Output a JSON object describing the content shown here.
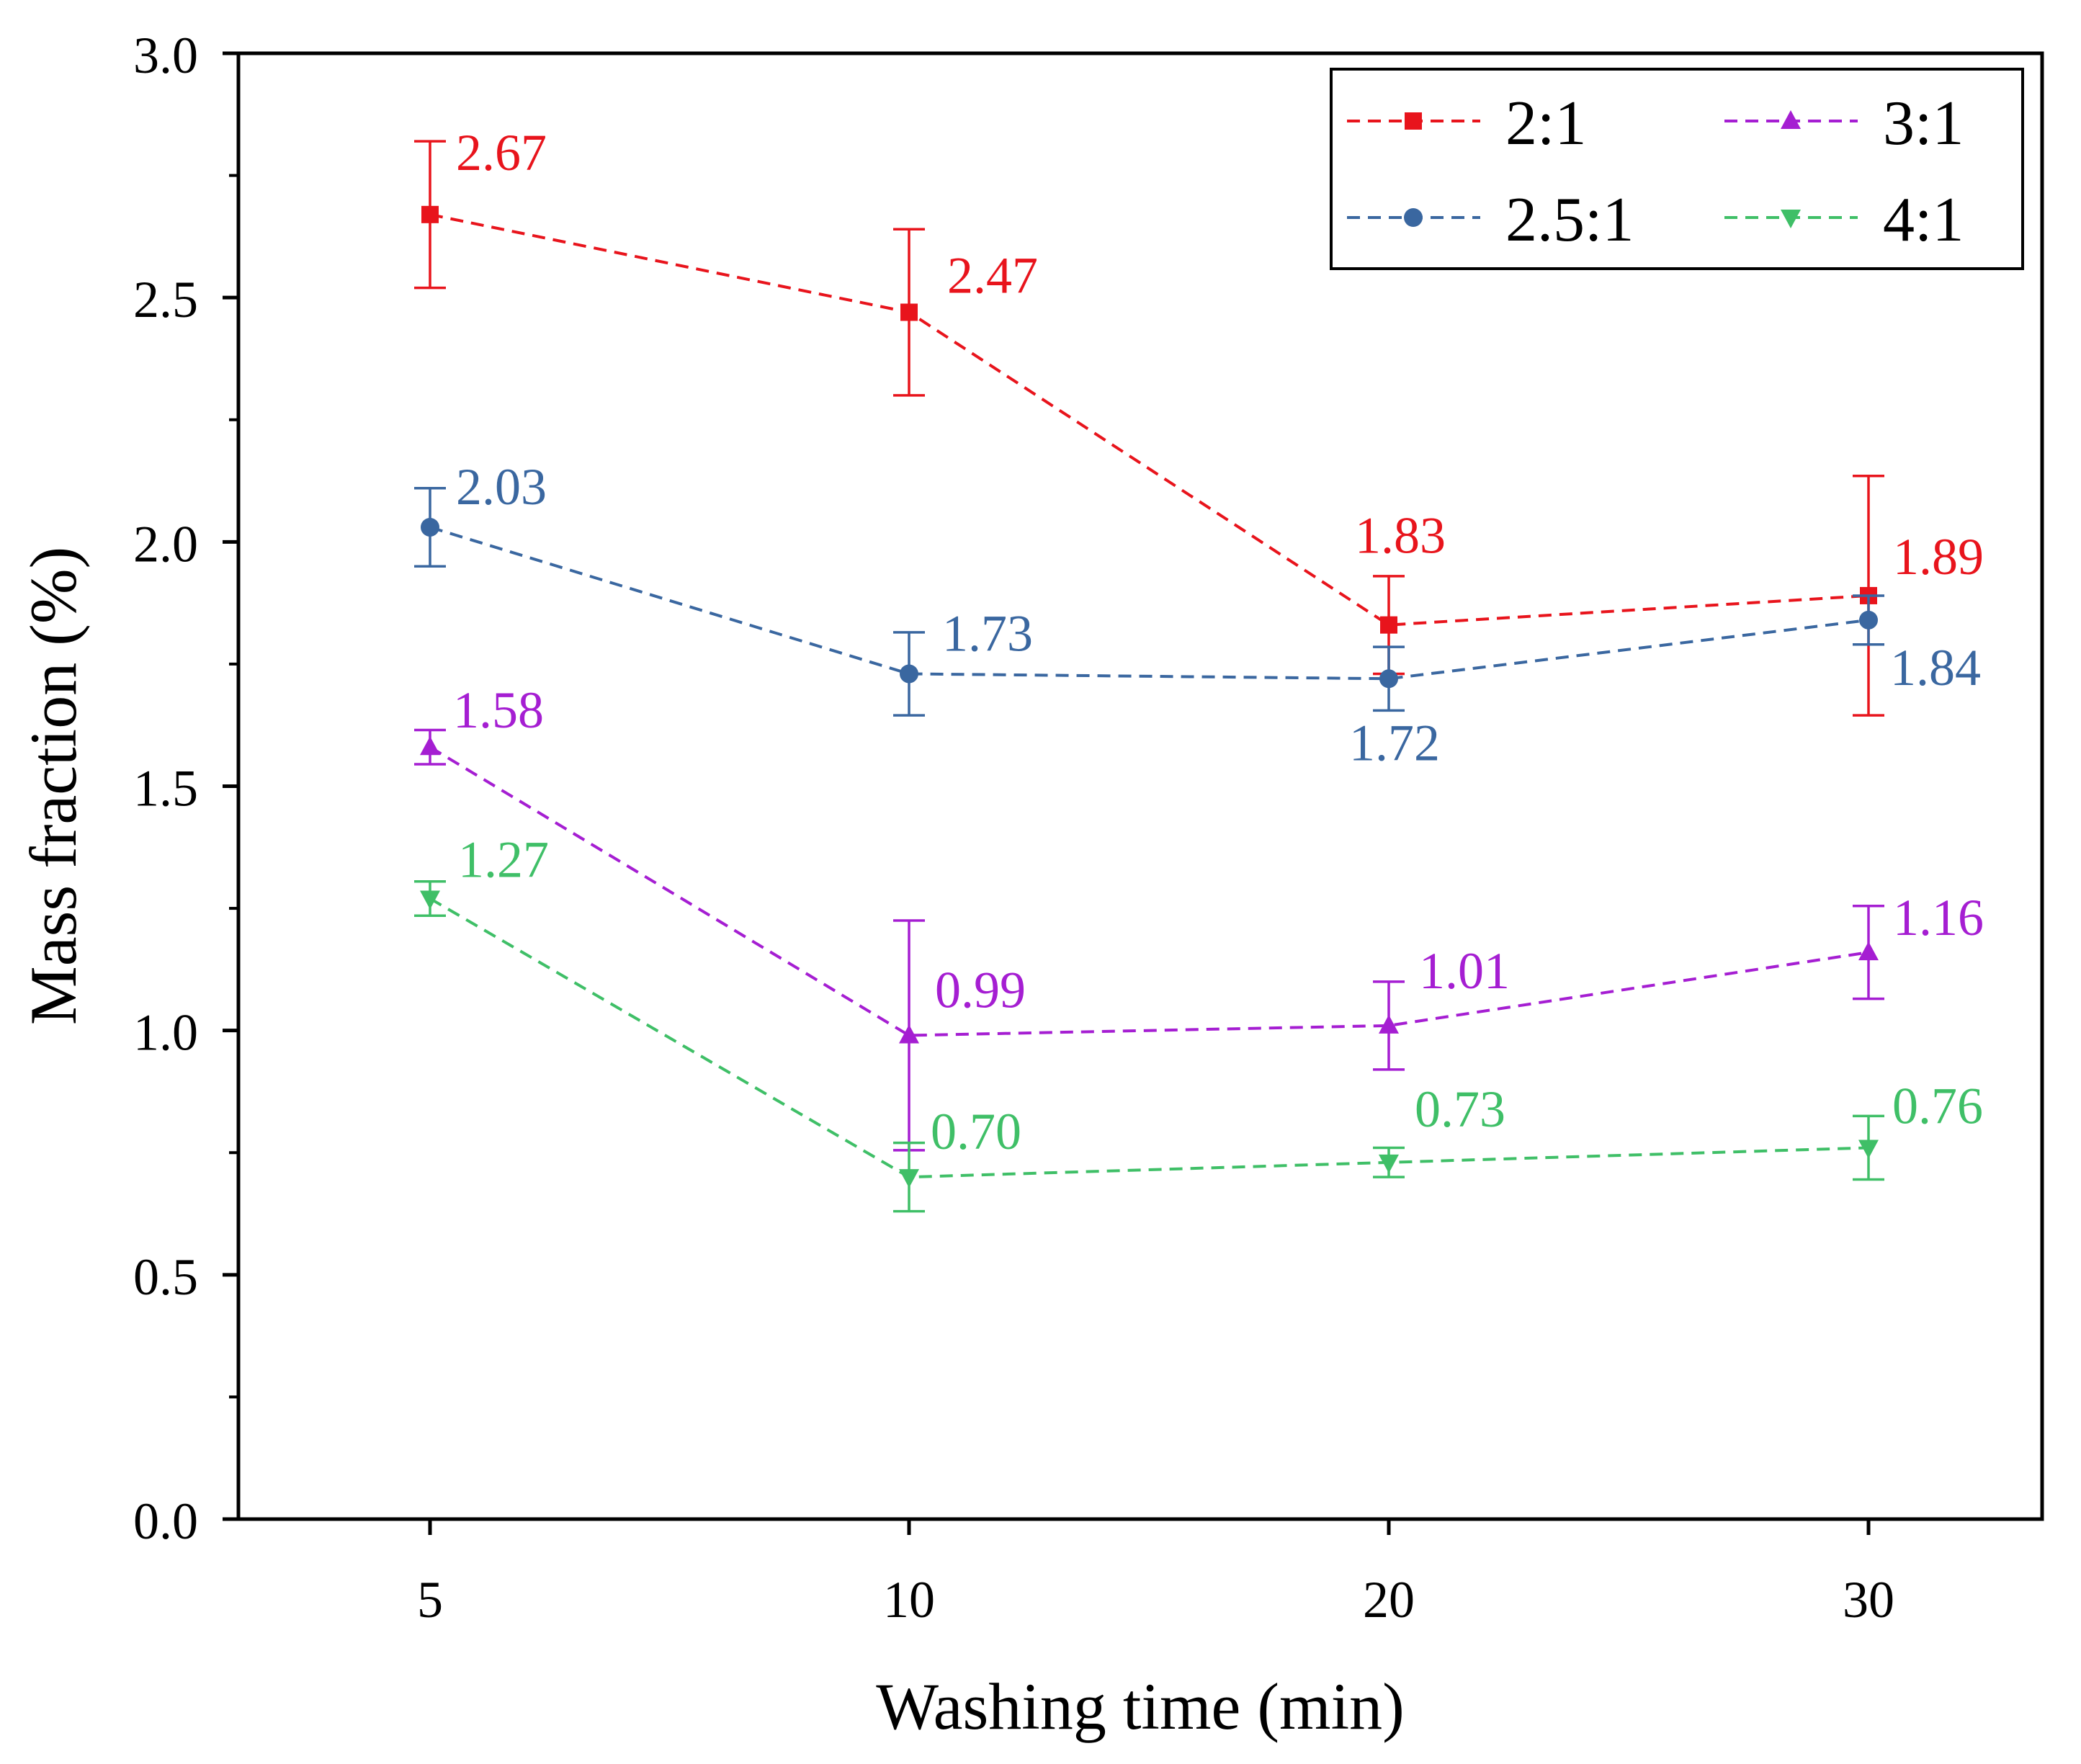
{
  "chart_data": {
    "type": "line",
    "title": "",
    "xlabel": "Washing time (min)",
    "ylabel": "Mass fraction (%)",
    "categories": [
      "5",
      "10",
      "20",
      "30"
    ],
    "ylim": [
      0.0,
      3.0
    ],
    "yticks": [
      "0.0",
      "0.5",
      "1.0",
      "1.5",
      "2.0",
      "2.5",
      "3.0"
    ],
    "ytick_values": [
      0.0,
      0.5,
      1.0,
      1.5,
      2.0,
      2.5,
      3.0
    ],
    "grid": false,
    "legend_position": "top-right",
    "series": [
      {
        "name": "2:1",
        "color": "#e8141c",
        "marker": "square",
        "values": [
          2.67,
          2.47,
          1.83,
          1.89
        ],
        "errors": [
          0.15,
          0.17,
          0.1,
          0.245
        ],
        "labels": [
          "2.67",
          "2.47",
          "1.83",
          "1.89"
        ]
      },
      {
        "name": "2.5:1",
        "color": "#3a67a0",
        "marker": "circle",
        "values": [
          2.03,
          1.73,
          1.72,
          1.84
        ],
        "errors": [
          0.08,
          0.085,
          0.065,
          0.05
        ],
        "labels": [
          "2.03",
          "1.73",
          "1.72",
          "1.84"
        ]
      },
      {
        "name": "3:1",
        "color": "#a51ed2",
        "marker": "triangle-up",
        "values": [
          1.58,
          0.99,
          1.01,
          1.16
        ],
        "errors": [
          0.035,
          0.235,
          0.09,
          0.095
        ],
        "labels": [
          "1.58",
          "0.99",
          "1.01",
          "1.16"
        ]
      },
      {
        "name": "4:1",
        "color": "#3fbf67",
        "marker": "triangle-down",
        "values": [
          1.27,
          0.7,
          0.73,
          0.76
        ],
        "errors": [
          0.035,
          0.07,
          0.03,
          0.065
        ],
        "labels": [
          "1.27",
          "0.70",
          "0.73",
          "0.76"
        ]
      }
    ]
  }
}
